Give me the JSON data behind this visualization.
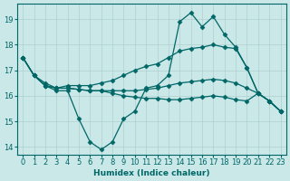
{
  "xlabel": "Humidex (Indice chaleur)",
  "background_color": "#cae8e8",
  "grid_color": "#b0d0d0",
  "line_color": "#006666",
  "xlim": [
    -0.5,
    23.5
  ],
  "ylim": [
    13.7,
    19.6
  ],
  "yticks": [
    14,
    15,
    16,
    17,
    18,
    19
  ],
  "xticks": [
    0,
    1,
    2,
    3,
    4,
    5,
    6,
    7,
    8,
    9,
    10,
    11,
    12,
    13,
    14,
    15,
    16,
    17,
    18,
    19,
    20,
    21,
    22,
    23
  ],
  "series": [
    [
      17.5,
      16.8,
      16.4,
      16.2,
      16.2,
      15.1,
      14.2,
      13.9,
      14.2,
      15.1,
      15.4,
      16.3,
      16.4,
      16.8,
      18.9,
      19.25,
      18.7,
      19.1,
      18.4,
      17.9,
      17.1,
      16.1,
      15.8,
      15.4
    ],
    [
      17.5,
      16.8,
      16.5,
      16.3,
      16.4,
      16.4,
      16.4,
      16.5,
      16.6,
      16.8,
      17.0,
      17.15,
      17.25,
      17.5,
      17.75,
      17.85,
      17.9,
      18.0,
      17.9,
      17.85,
      17.1,
      16.1,
      15.8,
      15.4
    ],
    [
      17.5,
      16.8,
      16.4,
      16.3,
      16.3,
      16.25,
      16.2,
      16.2,
      16.2,
      16.2,
      16.2,
      16.25,
      16.3,
      16.4,
      16.5,
      16.55,
      16.6,
      16.65,
      16.6,
      16.5,
      16.3,
      16.1,
      15.8,
      15.4
    ],
    [
      17.5,
      16.8,
      16.4,
      16.3,
      16.3,
      16.25,
      16.2,
      16.2,
      16.1,
      16.0,
      15.95,
      15.9,
      15.9,
      15.85,
      15.85,
      15.9,
      15.95,
      16.0,
      15.95,
      15.85,
      15.8,
      16.1,
      15.8,
      15.4
    ]
  ]
}
